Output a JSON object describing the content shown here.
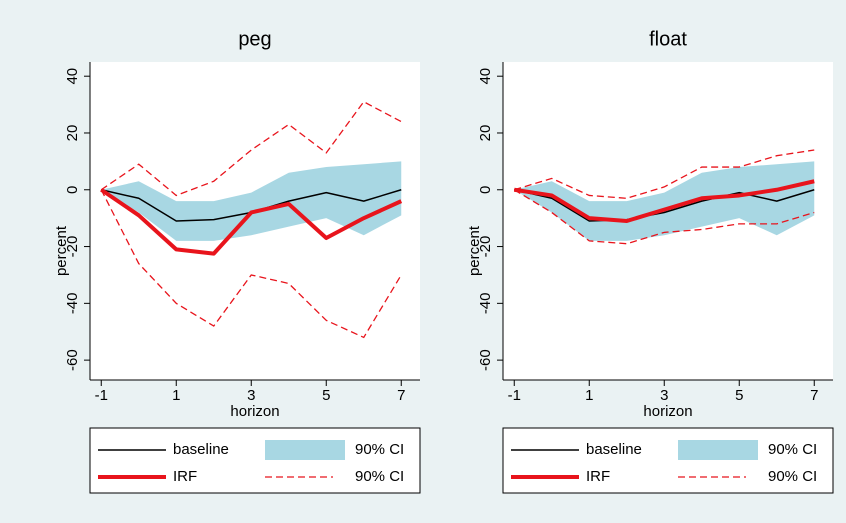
{
  "chart_data": [
    {
      "type": "line",
      "title": "peg",
      "xlabel": "horizon",
      "ylabel": "percent",
      "x": [
        -1,
        0,
        1,
        2,
        3,
        4,
        5,
        6,
        7
      ],
      "xlim": [
        -1.3,
        7.5
      ],
      "ylim": [
        -67,
        45
      ],
      "xticks": [
        -1,
        1,
        3,
        5,
        7
      ],
      "yticks": [
        -60,
        -40,
        -20,
        0,
        20,
        40
      ],
      "legend": "bottom",
      "series": [
        {
          "name": "baseline",
          "color": "#000000",
          "values": [
            0,
            -3,
            -11,
            -10.5,
            -8,
            -4,
            -1,
            -4,
            0
          ]
        },
        {
          "name": "90% CI",
          "color": "#a8d7e3",
          "style": "band",
          "upper": [
            0,
            3,
            -4,
            -4,
            -1,
            6,
            8,
            9,
            10
          ],
          "lower": [
            0,
            -8,
            -18,
            -18,
            -16,
            -13,
            -10,
            -16,
            -9
          ]
        },
        {
          "name": "IRF",
          "color": "#e8141c",
          "values": [
            0,
            -9,
            -21,
            -22.5,
            -8,
            -5,
            -17,
            -10,
            -4
          ]
        },
        {
          "name": "90% CI",
          "color": "#e8141c",
          "style": "dashed",
          "upper": [
            0,
            9,
            -2,
            3,
            14,
            23,
            13,
            31,
            24
          ],
          "lower": [
            0,
            -26,
            -40,
            -48,
            -30,
            -33,
            -46,
            -52,
            -30
          ]
        }
      ]
    },
    {
      "type": "line",
      "title": "float",
      "xlabel": "horizon",
      "ylabel": "percent",
      "x": [
        -1,
        0,
        1,
        2,
        3,
        4,
        5,
        6,
        7
      ],
      "xlim": [
        -1.3,
        7.5
      ],
      "ylim": [
        -67,
        45
      ],
      "xticks": [
        -1,
        1,
        3,
        5,
        7
      ],
      "yticks": [
        -60,
        -40,
        -20,
        0,
        20,
        40
      ],
      "legend": "bottom",
      "series": [
        {
          "name": "baseline",
          "color": "#000000",
          "values": [
            0,
            -3,
            -11,
            -10.5,
            -8,
            -4,
            -1,
            -4,
            0
          ]
        },
        {
          "name": "90% CI",
          "color": "#a8d7e3",
          "style": "band",
          "upper": [
            0,
            3,
            -4,
            -4,
            -1,
            6,
            8,
            9,
            10
          ],
          "lower": [
            0,
            -8,
            -18,
            -18,
            -16,
            -13,
            -10,
            -16,
            -9
          ]
        },
        {
          "name": "IRF",
          "color": "#e8141c",
          "values": [
            0,
            -2,
            -10,
            -11,
            -7,
            -3,
            -2,
            0,
            3
          ]
        },
        {
          "name": "90% CI",
          "color": "#e8141c",
          "style": "dashed",
          "upper": [
            0,
            4,
            -2,
            -3,
            1,
            8,
            8,
            12,
            14
          ],
          "lower": [
            0,
            -8,
            -18,
            -19,
            -15,
            -14,
            -12,
            -12,
            -8
          ]
        }
      ]
    }
  ]
}
